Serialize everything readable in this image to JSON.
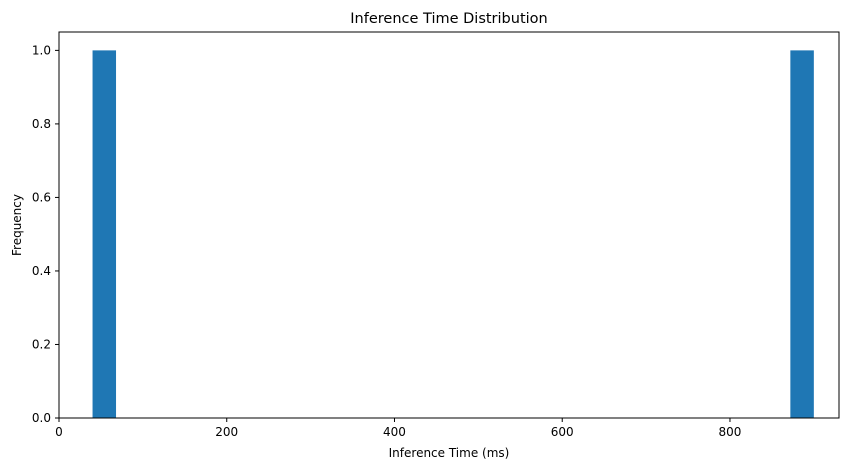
{
  "chart_data": {
    "type": "bar",
    "title": "Inference Time Distribution",
    "xlabel": "Inference Time (ms)",
    "ylabel": "Frequency",
    "xlim": [
      0,
      930
    ],
    "ylim": [
      0,
      1.05
    ],
    "xticks": [
      0,
      200,
      400,
      600,
      800
    ],
    "yticks": [
      0.0,
      0.2,
      0.4,
      0.6,
      0.8,
      1.0
    ],
    "xtick_labels": [
      "0",
      "200",
      "400",
      "600",
      "800"
    ],
    "ytick_labels": [
      "0.0",
      "0.2",
      "0.4",
      "0.6",
      "0.8",
      "1.0"
    ],
    "bins": [
      {
        "start": 40,
        "end": 68,
        "count": 1
      },
      {
        "start": 872,
        "end": 900,
        "count": 1
      }
    ],
    "bar_color": "#1f77b4",
    "grid": false,
    "legend": "none"
  }
}
